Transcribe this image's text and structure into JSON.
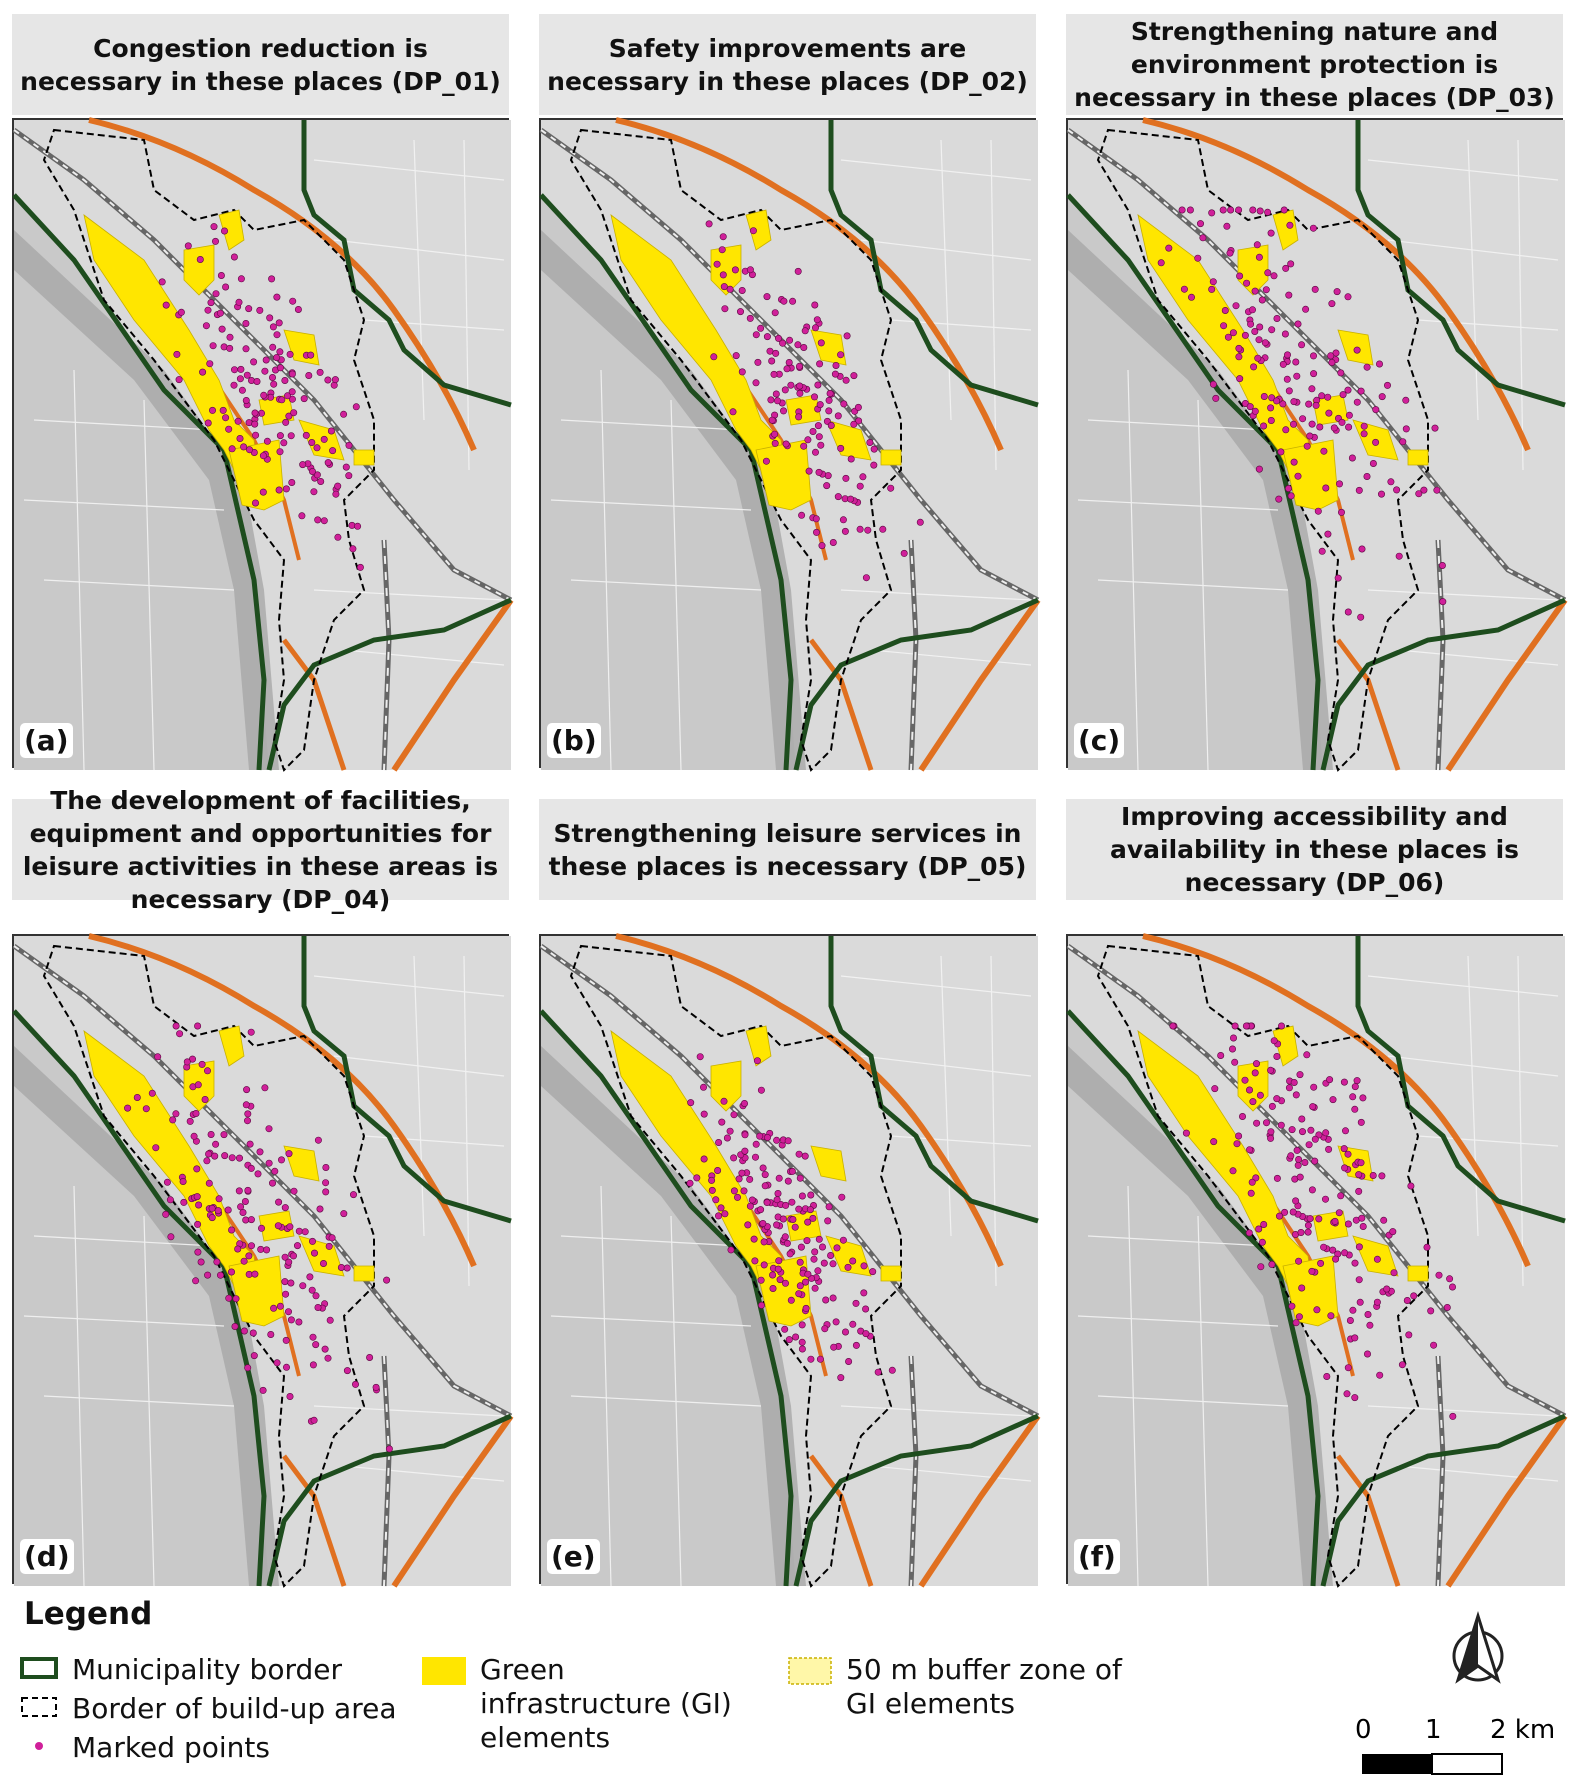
{
  "panels": [
    {
      "id": "a",
      "letter": "(a)",
      "title": "Congestion reduction is necessary in these places (DP_01)",
      "center": [
        0.51,
        0.42
      ],
      "spreadX": 0.09,
      "spreadY": 0.11,
      "points": 150
    },
    {
      "id": "b",
      "letter": "(b)",
      "title": "Safety improvements are necessary in these places (DP_02)",
      "center": [
        0.52,
        0.43
      ],
      "spreadX": 0.09,
      "spreadY": 0.11,
      "points": 140
    },
    {
      "id": "c",
      "letter": "(c)",
      "title": "Strengthening nature and environment protection is necessary in these places (DP_03)",
      "center": [
        0.48,
        0.4
      ],
      "spreadX": 0.12,
      "spreadY": 0.15,
      "points": 170
    },
    {
      "id": "d",
      "letter": "(d)",
      "title": "The development of facilities, equipment and opportunities for leisure activities in these areas is necessary (DP_04)",
      "center": [
        0.48,
        0.42
      ],
      "spreadX": 0.12,
      "spreadY": 0.15,
      "points": 175
    },
    {
      "id": "e",
      "letter": "(e)",
      "title": "Strengthening leisure services in these places is necessary (DP_05)",
      "center": [
        0.5,
        0.45
      ],
      "spreadX": 0.08,
      "spreadY": 0.1,
      "points": 180
    },
    {
      "id": "f",
      "letter": "(f)",
      "title": "Improving accessibility and availability in these places is necessary (DP_06)",
      "center": [
        0.51,
        0.4
      ],
      "spreadX": 0.12,
      "spreadY": 0.15,
      "points": 185
    }
  ],
  "legend": {
    "title": "Legend",
    "municipality": "Municipality border",
    "buildup": "Border of build-up area",
    "points": "Marked points",
    "gi": "Green infrastructure (GI) elements",
    "buffer": "50 m buffer zone of GI elements"
  },
  "scale": {
    "labels": [
      "0",
      "1",
      "2 km"
    ]
  },
  "colors": {
    "municipality": "#1e4d1e",
    "river": "#e07020",
    "gi": "#ffe600",
    "buffer": "#fff7a8",
    "points": "#d0209a",
    "land": "#dcdcdc"
  }
}
